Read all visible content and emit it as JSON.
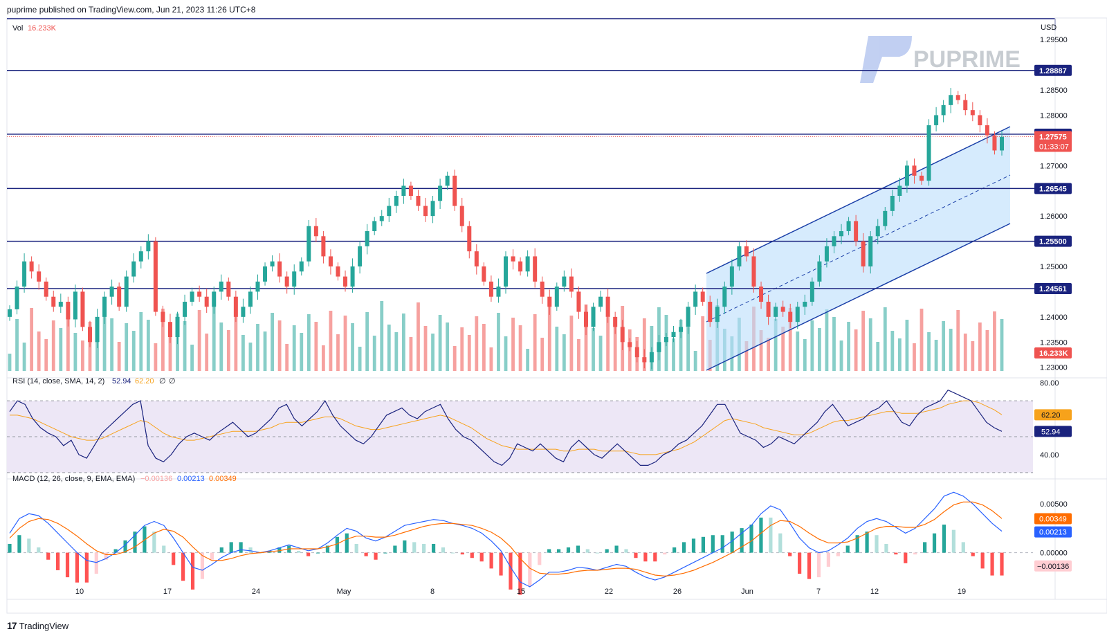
{
  "header": {
    "published": "puprime published on TradingView.com, Jun 21, 2023 11:26 UTC+8"
  },
  "footer": {
    "brand": "TradingView"
  },
  "watermark": {
    "text": "PUPRIME"
  },
  "colors": {
    "up": "#26a69a",
    "down": "#ef5350",
    "level": "#1a237e",
    "channel_fill": "#bbdefb",
    "rsi_band": "#ede7f6",
    "rsi_line": "#1a237e",
    "rsi_ma": "#f7a21b",
    "macd_line": "#2962ff",
    "signal_line": "#ff6d00"
  },
  "legends": {
    "vol": {
      "label": "Vol",
      "value": "16.233K"
    },
    "rsi": {
      "label": "RSI (14, close, SMA, 14, 2)",
      "v1": "52.94",
      "v2": "62.20",
      "v3": "∅",
      "v4": "∅"
    },
    "macd": {
      "label": "MACD (12, 26, close, 9, EMA, EMA)",
      "hist": "−0.00136",
      "macd": "0.00213",
      "signal": "0.00349"
    }
  },
  "chart_data": [
    {
      "type": "candlestick",
      "symbol_currency": "USD",
      "y_ticks": [
        "1.29500",
        "1.28500",
        "1.28000",
        "1.27000",
        "1.26000",
        "1.25000",
        "1.24000",
        "1.23500",
        "1.23000"
      ],
      "ylim": [
        1.229,
        1.299
      ],
      "x_ticks": [
        "10",
        "17",
        "24",
        "May",
        "8",
        "15",
        "22",
        "26",
        "Jun",
        "7",
        "12",
        "19"
      ],
      "horizontal_levels": [
        "1.28887",
        "1.27623",
        "1.26545",
        "1.25500",
        "1.24561"
      ],
      "current_price": "1.27575",
      "countdown": "01:33:07",
      "volume_label": "16.233K",
      "close_path": [
        1.2415,
        1.246,
        1.251,
        1.249,
        1.247,
        1.244,
        1.242,
        1.243,
        1.2395,
        1.245,
        1.238,
        1.235,
        1.24,
        1.244,
        1.246,
        1.242,
        1.248,
        1.251,
        1.253,
        1.255,
        1.241,
        1.239,
        1.236,
        1.24,
        1.243,
        1.245,
        1.244,
        1.242,
        1.245,
        1.247,
        1.244,
        1.24,
        1.242,
        1.245,
        1.247,
        1.25,
        1.251,
        1.248,
        1.246,
        1.249,
        1.251,
        1.258,
        1.256,
        1.252,
        1.25,
        1.248,
        1.246,
        1.25,
        1.254,
        1.257,
        1.259,
        1.26,
        1.262,
        1.264,
        1.266,
        1.264,
        1.262,
        1.26,
        1.263,
        1.266,
        1.268,
        1.262,
        1.258,
        1.253,
        1.25,
        1.247,
        1.244,
        1.246,
        1.252,
        1.251,
        1.249,
        1.252,
        1.247,
        1.244,
        1.242,
        1.246,
        1.248,
        1.245,
        1.241,
        1.238,
        1.242,
        1.244,
        1.24,
        1.238,
        1.235,
        1.234,
        1.232,
        1.231,
        1.233,
        1.235,
        1.236,
        1.237,
        1.238,
        1.242,
        1.245,
        1.243,
        1.239,
        1.242,
        1.246,
        1.25,
        1.254,
        1.252,
        1.246,
        1.243,
        1.24,
        1.242,
        1.241,
        1.239,
        1.242,
        1.243,
        1.247,
        1.251,
        1.254,
        1.256,
        1.257,
        1.259,
        1.255,
        1.25,
        1.256,
        1.258,
        1.261,
        1.264,
        1.266,
        1.27,
        1.268,
        1.267,
        1.278,
        1.28,
        1.282,
        1.284,
        1.283,
        1.281,
        1.28,
        1.278,
        1.276,
        1.273,
        1.2757
      ]
    },
    {
      "type": "line",
      "title": "RSI",
      "y_ticks": [
        "80.00",
        "40.00"
      ],
      "ylim": [
        28,
        82
      ],
      "band": [
        30,
        70
      ],
      "mid": 50,
      "rsi": [
        64,
        70,
        68,
        60,
        55,
        52,
        50,
        45,
        48,
        40,
        38,
        45,
        52,
        56,
        60,
        64,
        68,
        70,
        45,
        38,
        36,
        40,
        46,
        50,
        52,
        50,
        48,
        52,
        55,
        58,
        54,
        50,
        52,
        56,
        60,
        66,
        68,
        60,
        56,
        60,
        64,
        70,
        62,
        56,
        52,
        48,
        46,
        50,
        56,
        62,
        64,
        66,
        62,
        60,
        64,
        66,
        68,
        60,
        54,
        50,
        48,
        44,
        40,
        36,
        34,
        38,
        46,
        44,
        42,
        46,
        42,
        38,
        36,
        44,
        48,
        44,
        40,
        38,
        42,
        46,
        42,
        38,
        34,
        34,
        36,
        40,
        42,
        46,
        48,
        52,
        56,
        62,
        68,
        68,
        60,
        52,
        50,
        48,
        44,
        46,
        50,
        48,
        46,
        50,
        54,
        58,
        64,
        68,
        62,
        56,
        58,
        60,
        64,
        66,
        70,
        64,
        58,
        56,
        62,
        66,
        68,
        70,
        76,
        74,
        72,
        70,
        64,
        58,
        55,
        52.94
      ],
      "ma": [
        62,
        62,
        61,
        60,
        58,
        56,
        54,
        52,
        50,
        49,
        48,
        48,
        49,
        51,
        53,
        55,
        57,
        59,
        58,
        55,
        52,
        50,
        49,
        48,
        48,
        49,
        50,
        51,
        52,
        53,
        53,
        53,
        53,
        54,
        55,
        57,
        58,
        58,
        58,
        59,
        60,
        61,
        61,
        60,
        58,
        56,
        55,
        54,
        54,
        55,
        56,
        57,
        58,
        59,
        60,
        61,
        62,
        61,
        59,
        57,
        55,
        52,
        49,
        47,
        45,
        44,
        43,
        43,
        43,
        43,
        43,
        43,
        42,
        42,
        43,
        43,
        43,
        42,
        42,
        42,
        42,
        41,
        40,
        40,
        40,
        41,
        42,
        43,
        45,
        47,
        50,
        53,
        56,
        59,
        60,
        59,
        58,
        57,
        55,
        54,
        53,
        52,
        51,
        51,
        52,
        54,
        56,
        58,
        59,
        59,
        60,
        61,
        62,
        63,
        64,
        64,
        63,
        63,
        63,
        64,
        65,
        66,
        68,
        69,
        70,
        70,
        69,
        67,
        65,
        62.2
      ]
    },
    {
      "type": "line",
      "title": "MACD",
      "y_ticks": [
        "0.00500",
        "0.00000"
      ],
      "ylim": [
        -0.0045,
        0.007
      ],
      "macd": [
        0.002,
        0.0035,
        0.004,
        0.0038,
        0.003,
        0.002,
        0.001,
        0.0,
        -0.0008,
        -0.001,
        -0.0006,
        0.0,
        0.0008,
        0.0018,
        0.0028,
        0.0032,
        0.0028,
        0.0015,
        0.0,
        -0.0015,
        -0.0018,
        -0.0012,
        -0.0005,
        0.0,
        0.0003,
        0.0002,
        0.0,
        0.0002,
        0.0005,
        0.0008,
        0.0005,
        0.0002,
        0.0004,
        0.001,
        0.0018,
        0.0025,
        0.0022,
        0.0015,
        0.0012,
        0.0016,
        0.0022,
        0.0028,
        0.003,
        0.0032,
        0.0034,
        0.0033,
        0.003,
        0.0028,
        0.0025,
        0.002,
        0.0012,
        0.0002,
        -0.0015,
        -0.003,
        -0.0035,
        -0.0028,
        -0.002,
        -0.002,
        -0.0018,
        -0.0015,
        -0.0016,
        -0.0018,
        -0.0015,
        -0.0012,
        -0.0014,
        -0.002,
        -0.0025,
        -0.0028,
        -0.0025,
        -0.002,
        -0.0015,
        -0.001,
        -0.0005,
        0.0,
        0.0005,
        0.0012,
        0.002,
        0.0028,
        0.004,
        0.0048,
        0.0044,
        0.003,
        0.0015,
        0.0005,
        0.0,
        0.0002,
        0.0008,
        0.0015,
        0.0025,
        0.0032,
        0.0035,
        0.0032,
        0.0026,
        0.002,
        0.0025,
        0.0035,
        0.0045,
        0.0058,
        0.0062,
        0.0058,
        0.005,
        0.004,
        0.003,
        0.0022
      ],
      "signal": [
        0.0015,
        0.0025,
        0.0032,
        0.0035,
        0.0034,
        0.003,
        0.0024,
        0.0017,
        0.0009,
        0.0002,
        -0.0002,
        -0.0002,
        0.0001,
        0.0006,
        0.0013,
        0.002,
        0.0024,
        0.0022,
        0.0016,
        0.0006,
        -0.0003,
        -0.0008,
        -0.0008,
        -0.0006,
        -0.0003,
        -0.0001,
        0.0,
        0.0001,
        0.0002,
        0.0004,
        0.0004,
        0.0004,
        0.0004,
        0.0006,
        0.0009,
        0.0014,
        0.0017,
        0.0017,
        0.0016,
        0.0016,
        0.0018,
        0.0021,
        0.0024,
        0.0027,
        0.0029,
        0.003,
        0.003,
        0.0029,
        0.0028,
        0.0025,
        0.0021,
        0.0015,
        0.0006,
        -0.0006,
        -0.0016,
        -0.0021,
        -0.0022,
        -0.0022,
        -0.0021,
        -0.0019,
        -0.0018,
        -0.0018,
        -0.0017,
        -0.0016,
        -0.0016,
        -0.0017,
        -0.002,
        -0.0023,
        -0.0024,
        -0.0023,
        -0.0021,
        -0.0018,
        -0.0014,
        -0.001,
        -0.0005,
        0.0,
        0.0006,
        0.0012,
        0.002,
        0.0028,
        0.0033,
        0.0032,
        0.0027,
        0.002,
        0.0014,
        0.001,
        0.001,
        0.0011,
        0.0015,
        0.002,
        0.0025,
        0.0027,
        0.0027,
        0.0026,
        0.0026,
        0.0029,
        0.0034,
        0.0042,
        0.0049,
        0.0052,
        0.0052,
        0.0049,
        0.0043,
        0.0035
      ]
    }
  ]
}
